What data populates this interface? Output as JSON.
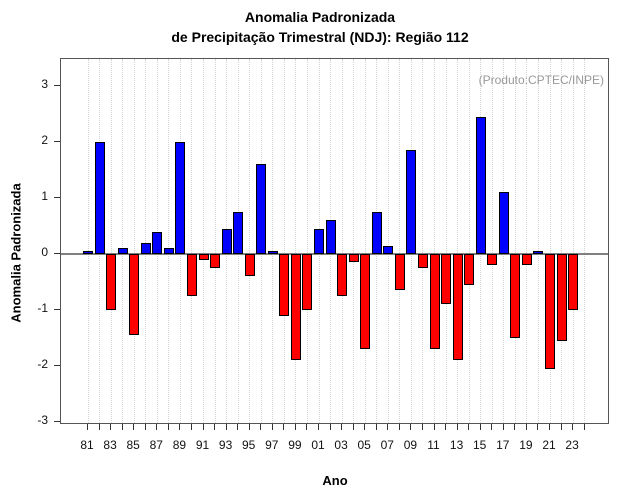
{
  "title": {
    "line1": "Anomalia Padronizada",
    "line2": "de Precipitação Trimestral (NDJ): Região 112"
  },
  "annotation": "(Produto:CPTEC/INPE)",
  "chart_data": {
    "type": "bar",
    "title": "Anomalia Padronizada de Precipitação Trimestral (NDJ): Região 112",
    "xlabel": "Ano",
    "ylabel": "Anomalia Padronizada",
    "x_tick_labels": [
      "81",
      "83",
      "85",
      "87",
      "89",
      "91",
      "93",
      "95",
      "97",
      "99",
      "01",
      "03",
      "05",
      "07",
      "09",
      "11",
      "13",
      "15",
      "17",
      "19",
      "21",
      "23"
    ],
    "y_ticks": [
      -3,
      -2,
      -1,
      0,
      1,
      2,
      3
    ],
    "ylim": [
      -3.1,
      3.5
    ],
    "grid": "vertical-dotted-per-year",
    "years": [
      1981,
      1982,
      1983,
      1984,
      1985,
      1986,
      1987,
      1988,
      1989,
      1990,
      1991,
      1992,
      1993,
      1994,
      1995,
      1996,
      1997,
      1998,
      1999,
      2000,
      2001,
      2002,
      2003,
      2004,
      2005,
      2006,
      2007,
      2008,
      2009,
      2010,
      2011,
      2012,
      2013,
      2014,
      2015,
      2016,
      2017,
      2018,
      2019,
      2020,
      2021,
      2022,
      2023
    ],
    "values": [
      0.05,
      2.0,
      -1.0,
      0.1,
      -1.45,
      0.2,
      0.4,
      0.1,
      2.0,
      -0.75,
      -0.1,
      -0.25,
      0.45,
      0.75,
      -0.4,
      1.6,
      0.05,
      -1.1,
      -1.9,
      -1.0,
      0.45,
      0.6,
      -0.75,
      -0.15,
      -1.7,
      0.75,
      0.15,
      -0.65,
      1.85,
      -0.25,
      -1.7,
      -0.9,
      -1.9,
      -0.55,
      2.45,
      -0.2,
      1.1,
      -1.5,
      -0.2,
      0.05,
      -2.05,
      -1.55,
      -1.0
    ],
    "positive_color": "#0000FF",
    "negative_color": "#FF0000",
    "bar_border_color": "#000000",
    "zero_line_color": "#808080"
  }
}
